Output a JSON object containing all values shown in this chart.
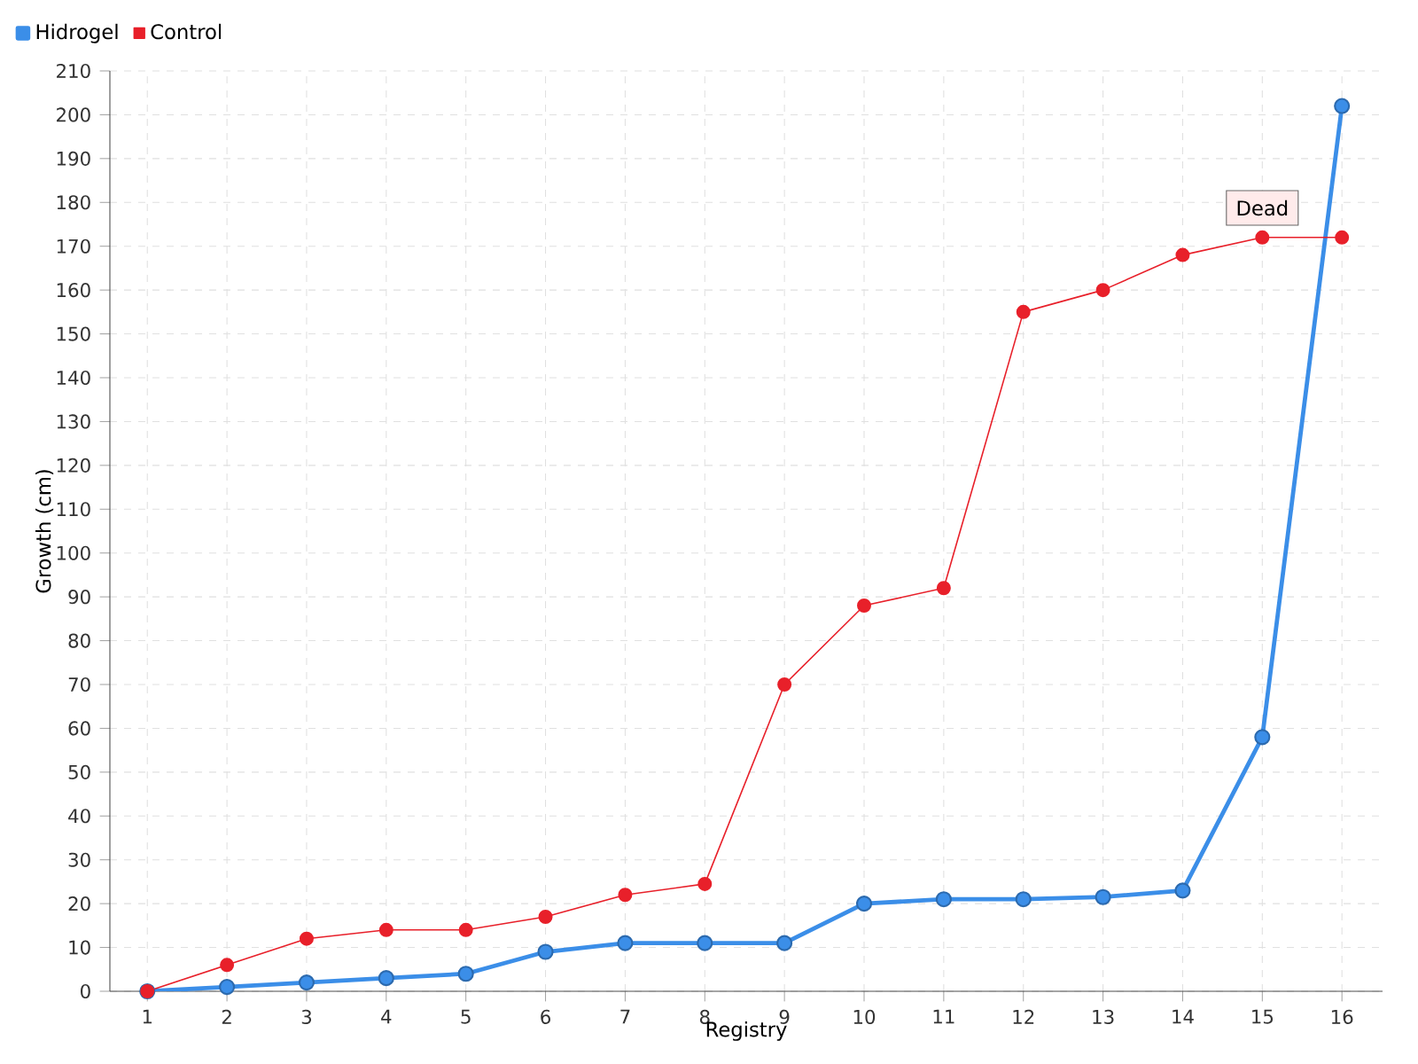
{
  "chart_data": {
    "type": "line",
    "xlabel": "Registry",
    "ylabel": "Growth (cm)",
    "categories": [
      "1",
      "2",
      "3",
      "4",
      "5",
      "6",
      "7",
      "8",
      "9",
      "10",
      "11",
      "12",
      "13",
      "14",
      "15",
      "16"
    ],
    "series": [
      {
        "name": "Hidrogel",
        "color": "#3b8ee8",
        "values": [
          0,
          1,
          2,
          3,
          4,
          9,
          11,
          11,
          11,
          20,
          21,
          21,
          21.5,
          23,
          58,
          202
        ]
      },
      {
        "name": "Control",
        "color": "#e8202a",
        "values": [
          0,
          6,
          12,
          14,
          14,
          17,
          22,
          24.5,
          70,
          88,
          92,
          155,
          160,
          168,
          172,
          172
        ]
      }
    ],
    "ylim": [
      0,
      210
    ],
    "yticks": [
      0,
      10,
      20,
      30,
      40,
      50,
      60,
      70,
      80,
      90,
      100,
      110,
      120,
      130,
      140,
      150,
      160,
      170,
      180,
      190,
      200,
      210
    ],
    "grid": true,
    "legend": "top left",
    "marker": "circle",
    "line_style": "solid",
    "annotations": [
      {
        "text": "Dead",
        "x": "15",
        "y": 172
      }
    ]
  }
}
